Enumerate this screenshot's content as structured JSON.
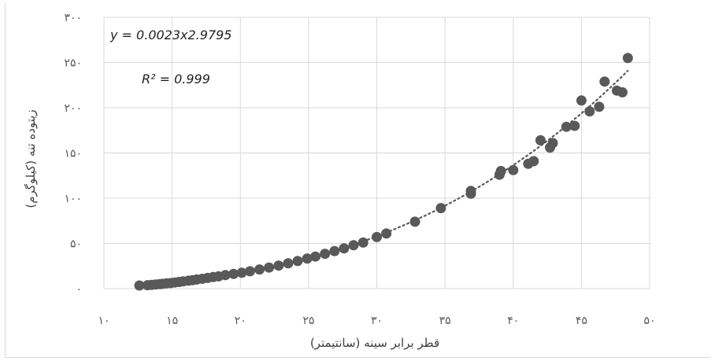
{
  "chart_data": {
    "type": "scatter",
    "xlabel": "قطر برابر سینه (سانتیمتر)",
    "ylabel": "زیتوده تنه (کیلوگرم)",
    "xlim": [
      10,
      50
    ],
    "ylim": [
      0,
      300
    ],
    "x_ticks": [
      10,
      15,
      20,
      25,
      30,
      35,
      40,
      45,
      50
    ],
    "y_ticks": [
      0,
      50,
      100,
      150,
      200,
      250,
      300
    ],
    "x_tick_labels": [
      "۱۰",
      "۱۵",
      "۲۰",
      "۲۵",
      "۳۰",
      "۳۵",
      "۴۰",
      "۴۵",
      "۵۰"
    ],
    "y_tick_labels": [
      "۰",
      "۵۰",
      "۱۰۰",
      "۱۵۰",
      "۲۰۰",
      "۲۵۰",
      "۳۰۰"
    ],
    "grid": true,
    "equation": "y = 0.0023x2.9795",
    "r_squared": "R² = 0.999",
    "trendline": {
      "type": "power",
      "a": 0.0023,
      "b": 2.9795,
      "style": "dotted"
    },
    "marker_color": "#595959",
    "trendline_color": "#595959",
    "points": [
      [
        12.6,
        3.5
      ],
      [
        13.2,
        3.8
      ],
      [
        13.5,
        4.2
      ],
      [
        13.8,
        4.6
      ],
      [
        14.1,
        5.0
      ],
      [
        14.3,
        5.3
      ],
      [
        14.6,
        5.8
      ],
      [
        14.9,
        6.2
      ],
      [
        15.2,
        6.8
      ],
      [
        15.5,
        7.4
      ],
      [
        15.8,
        8.0
      ],
      [
        16.2,
        8.8
      ],
      [
        16.5,
        9.4
      ],
      [
        16.8,
        10.1
      ],
      [
        17.2,
        10.9
      ],
      [
        17.6,
        11.8
      ],
      [
        18.0,
        12.8
      ],
      [
        18.4,
        13.6
      ],
      [
        18.9,
        15.0
      ],
      [
        19.5,
        16.3
      ],
      [
        20.1,
        17.6
      ],
      [
        20.7,
        19.2
      ],
      [
        21.4,
        21.2
      ],
      [
        22.1,
        23.3
      ],
      [
        22.8,
        25.5
      ],
      [
        23.5,
        28.0
      ],
      [
        24.2,
        30.5
      ],
      [
        24.9,
        33.2
      ],
      [
        25.5,
        35.5
      ],
      [
        26.2,
        38.5
      ],
      [
        26.9,
        41.5
      ],
      [
        27.6,
        44.5
      ],
      [
        28.3,
        48.0
      ],
      [
        29.0,
        51.0
      ],
      [
        30.0,
        57.0
      ],
      [
        30.7,
        61.0
      ],
      [
        32.8,
        74.0
      ],
      [
        34.7,
        89.0
      ],
      [
        36.9,
        105.0
      ],
      [
        36.9,
        108.0
      ],
      [
        39.0,
        126.0
      ],
      [
        39.1,
        130.0
      ],
      [
        40.0,
        131.0
      ],
      [
        41.1,
        138.0
      ],
      [
        41.5,
        141.0
      ],
      [
        42.0,
        164.0
      ],
      [
        42.7,
        156.0
      ],
      [
        42.9,
        161.0
      ],
      [
        43.9,
        179.0
      ],
      [
        44.5,
        180.0
      ],
      [
        45.0,
        208.0
      ],
      [
        45.6,
        196.0
      ],
      [
        46.3,
        201.0
      ],
      [
        46.7,
        229.0
      ],
      [
        47.6,
        219.0
      ],
      [
        48.0,
        217.0
      ],
      [
        48.4,
        255.0
      ]
    ]
  }
}
